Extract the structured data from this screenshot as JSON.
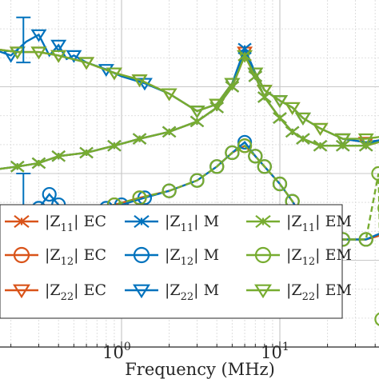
{
  "chart_data": {
    "type": "line",
    "xlabel": "Frequency (MHz)",
    "x_scale": "log",
    "xlim": [
      0.1,
      50
    ],
    "x_ticks": [
      {
        "value": 1,
        "base": "10",
        "exp": "0"
      },
      {
        "value": 10,
        "base": "10",
        "exp": "1"
      }
    ],
    "y_relative_range": [
      0,
      1
    ],
    "grid": true,
    "legend": {
      "placement": "lower-left",
      "columns": 3,
      "entries": [
        {
          "pre": "|Z",
          "sub": "11",
          "post": "| EC",
          "color": "#D95319",
          "marker": "x"
        },
        {
          "pre": "|Z",
          "sub": "11",
          "post": "| M",
          "color": "#0072BD",
          "marker": "x"
        },
        {
          "pre": "|Z",
          "sub": "11",
          "post": "| EM",
          "color": "#77AC30",
          "marker": "x"
        },
        {
          "pre": "|Z",
          "sub": "12",
          "post": "| EC",
          "color": "#D95319",
          "marker": "o"
        },
        {
          "pre": "|Z",
          "sub": "12",
          "post": "| M",
          "color": "#0072BD",
          "marker": "o"
        },
        {
          "pre": "|Z",
          "sub": "12",
          "post": "| EM",
          "color": "#77AC30",
          "marker": "o"
        },
        {
          "pre": "|Z",
          "sub": "22",
          "post": "| EC",
          "color": "#D95319",
          "marker": "v"
        },
        {
          "pre": "|Z",
          "sub": "22",
          "post": "| M",
          "color": "#0072BD",
          "marker": "v"
        },
        {
          "pre": "|Z",
          "sub": "22",
          "post": "| EM",
          "color": "#77AC30",
          "marker": "v"
        }
      ]
    },
    "series": [
      {
        "key": "z22_ec",
        "color": "#D95319",
        "marker": "v",
        "x": [
          0.1,
          0.15,
          0.22,
          0.3,
          0.4,
          0.6,
          0.9,
          1.3,
          2,
          3,
          4,
          5,
          6,
          7,
          8,
          10,
          12,
          14,
          18,
          25,
          35,
          50
        ],
        "y": [
          0.86,
          0.86,
          0.85,
          0.85,
          0.84,
          0.82,
          0.79,
          0.77,
          0.73,
          0.68,
          0.7,
          0.76,
          0.85,
          0.79,
          0.74,
          0.71,
          0.69,
          0.66,
          0.63,
          0.6,
          0.59,
          0.6
        ]
      },
      {
        "key": "z22_m",
        "color": "#0072BD",
        "marker": "v",
        "x": [
          0.1,
          0.15,
          0.2,
          0.25,
          0.3,
          0.35,
          0.4,
          0.45,
          0.5,
          0.6,
          0.8,
          1.0,
          1.4,
          2,
          3,
          4,
          5,
          6,
          7,
          8,
          10,
          12,
          14,
          18,
          25,
          35,
          50
        ],
        "y": [
          0.86,
          0.86,
          0.84,
          0.88,
          0.9,
          0.84,
          0.87,
          0.83,
          0.84,
          0.82,
          0.8,
          0.78,
          0.76,
          0.73,
          0.68,
          0.7,
          0.76,
          0.86,
          0.79,
          0.74,
          0.71,
          0.69,
          0.66,
          0.63,
          0.6,
          0.59,
          0.6
        ]
      },
      {
        "key": "z22_em",
        "color": "#77AC30",
        "marker": "v",
        "x": [
          0.1,
          0.15,
          0.22,
          0.3,
          0.4,
          0.6,
          0.9,
          1.3,
          2,
          3,
          4,
          5,
          6,
          7,
          8,
          10,
          12,
          14,
          18,
          25,
          35,
          50
        ],
        "y": [
          0.87,
          0.86,
          0.85,
          0.85,
          0.84,
          0.82,
          0.79,
          0.77,
          0.73,
          0.68,
          0.7,
          0.76,
          0.84,
          0.79,
          0.74,
          0.71,
          0.69,
          0.66,
          0.63,
          0.6,
          0.6,
          0.61
        ]
      },
      {
        "key": "z11_ec",
        "color": "#D95319",
        "marker": "x",
        "x": [
          0.1,
          0.15,
          0.22,
          0.3,
          0.4,
          0.6,
          0.9,
          1.3,
          2,
          3,
          4,
          5,
          6,
          7,
          8,
          10,
          12,
          14,
          18,
          25,
          35,
          50
        ],
        "y": [
          0.5,
          0.51,
          0.52,
          0.53,
          0.55,
          0.56,
          0.58,
          0.6,
          0.62,
          0.65,
          0.69,
          0.75,
          0.84,
          0.78,
          0.72,
          0.66,
          0.62,
          0.6,
          0.58,
          0.58,
          0.58,
          0.6
        ]
      },
      {
        "key": "z11_m",
        "color": "#0072BD",
        "marker": "x",
        "x": [
          0.1,
          0.15,
          0.22,
          0.3,
          0.4,
          0.6,
          0.9,
          1.3,
          2,
          3,
          4,
          5,
          6,
          7,
          8,
          10,
          12,
          14,
          18,
          25,
          35,
          50
        ],
        "y": [
          0.5,
          0.51,
          0.52,
          0.53,
          0.55,
          0.56,
          0.58,
          0.6,
          0.62,
          0.65,
          0.69,
          0.75,
          0.86,
          0.78,
          0.72,
          0.66,
          0.62,
          0.6,
          0.58,
          0.58,
          0.58,
          0.61
        ]
      },
      {
        "key": "z11_em",
        "color": "#77AC30",
        "marker": "x",
        "x": [
          0.1,
          0.15,
          0.22,
          0.3,
          0.4,
          0.6,
          0.9,
          1.3,
          2,
          3,
          4,
          5,
          6,
          7,
          8,
          10,
          12,
          14,
          18,
          25,
          35,
          50
        ],
        "y": [
          0.5,
          0.51,
          0.52,
          0.53,
          0.55,
          0.56,
          0.58,
          0.6,
          0.62,
          0.65,
          0.69,
          0.75,
          0.84,
          0.78,
          0.72,
          0.66,
          0.62,
          0.6,
          0.58,
          0.58,
          0.58,
          0.6
        ]
      },
      {
        "key": "z12_ec",
        "color": "#D95319",
        "marker": "o",
        "x": [
          0.1,
          0.15,
          0.22,
          0.3,
          0.4,
          0.6,
          0.9,
          1.3,
          2,
          3,
          4,
          5,
          6,
          7,
          8,
          10,
          12,
          14,
          18,
          25,
          35,
          50
        ],
        "y": [
          0.3,
          0.32,
          0.34,
          0.35,
          0.37,
          0.39,
          0.41,
          0.43,
          0.45,
          0.48,
          0.52,
          0.56,
          0.58,
          0.55,
          0.52,
          0.47,
          0.42,
          0.37,
          0.32,
          0.31,
          0.31,
          0.33
        ]
      },
      {
        "key": "z12_m",
        "color": "#0072BD",
        "marker": "o",
        "x": [
          0.1,
          0.15,
          0.2,
          0.25,
          0.3,
          0.35,
          0.4,
          0.45,
          0.5,
          0.6,
          0.8,
          1.0,
          1.4,
          2,
          3,
          4,
          5,
          6,
          7,
          8,
          10,
          12,
          14,
          18,
          25,
          35,
          50
        ],
        "y": [
          0.3,
          0.31,
          0.36,
          0.38,
          0.4,
          0.44,
          0.41,
          0.38,
          0.39,
          0.39,
          0.4,
          0.41,
          0.43,
          0.45,
          0.48,
          0.52,
          0.56,
          0.59,
          0.55,
          0.52,
          0.47,
          0.42,
          0.37,
          0.32,
          0.31,
          0.31,
          0.34
        ]
      },
      {
        "key": "z12_em",
        "color": "#77AC30",
        "marker": "o",
        "x": [
          0.1,
          0.15,
          0.22,
          0.3,
          0.4,
          0.6,
          0.9,
          1.3,
          2,
          3,
          4,
          5,
          6,
          7,
          8,
          10,
          12,
          14,
          18,
          25,
          35,
          42,
          44,
          46,
          50
        ],
        "y": [
          0.32,
          0.33,
          0.34,
          0.35,
          0.37,
          0.39,
          0.41,
          0.43,
          0.45,
          0.48,
          0.52,
          0.56,
          0.58,
          0.55,
          0.52,
          0.47,
          0.42,
          0.37,
          0.32,
          0.31,
          0.31,
          0.5,
          0.08,
          0.4,
          0.6
        ]
      }
    ],
    "error_bars": [
      {
        "x": 0.24,
        "low": 0.82,
        "high": 0.95,
        "color": "#0072BD"
      },
      {
        "x": 0.24,
        "low": 0.3,
        "high": 0.5,
        "color": "#0072BD"
      }
    ]
  }
}
